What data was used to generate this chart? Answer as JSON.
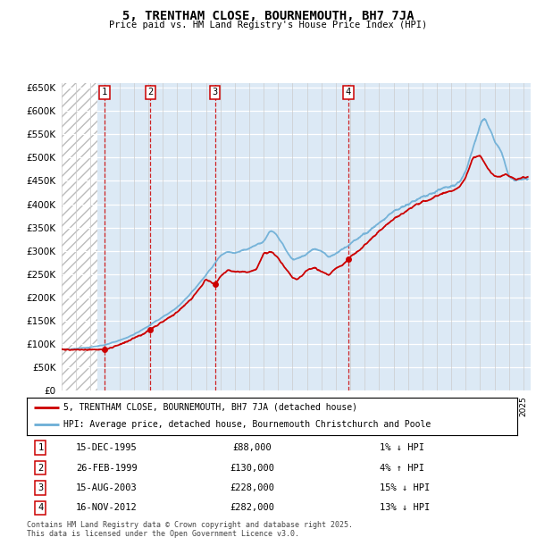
{
  "title": "5, TRENTHAM CLOSE, BOURNEMOUTH, BH7 7JA",
  "subtitle": "Price paid vs. HM Land Registry's House Price Index (HPI)",
  "hpi_color": "#6baed6",
  "price_color": "#cc0000",
  "background_color": "#dce9f5",
  "ylim": [
    0,
    660000
  ],
  "yticks": [
    0,
    50000,
    100000,
    150000,
    200000,
    250000,
    300000,
    350000,
    400000,
    450000,
    500000,
    550000,
    600000,
    650000
  ],
  "xlim_start": 1993.0,
  "xlim_end": 2025.5,
  "hatch_end": 1995.5,
  "purchases": [
    {
      "num": 1,
      "date": "15-DEC-1995",
      "year": 1995.96,
      "price": 88000,
      "hpi_diff": "1% ↓ HPI"
    },
    {
      "num": 2,
      "date": "26-FEB-1999",
      "year": 1999.15,
      "price": 130000,
      "hpi_diff": "4% ↑ HPI"
    },
    {
      "num": 3,
      "date": "15-AUG-2003",
      "year": 2003.62,
      "price": 228000,
      "hpi_diff": "15% ↓ HPI"
    },
    {
      "num": 4,
      "date": "16-NOV-2012",
      "year": 2012.87,
      "price": 282000,
      "hpi_diff": "13% ↓ HPI"
    }
  ],
  "footer": "Contains HM Land Registry data © Crown copyright and database right 2025.\nThis data is licensed under the Open Government Licence v3.0.",
  "legend_line1": "5, TRENTHAM CLOSE, BOURNEMOUTH, BH7 7JA (detached house)",
  "legend_line2": "HPI: Average price, detached house, Bournemouth Christchurch and Poole"
}
